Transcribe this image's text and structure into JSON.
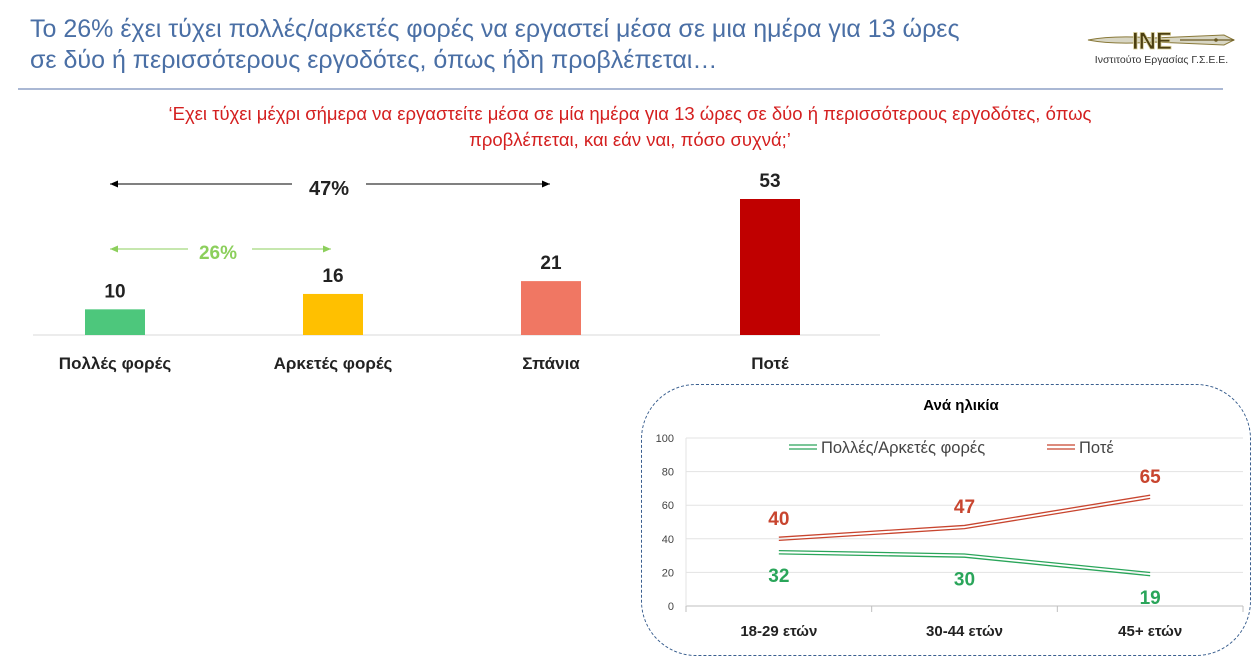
{
  "header": {
    "title_line1": "Το 26% έχει τύχει πολλές/αρκετές φορές να εργαστεί μέσα σε μια ημέρα για 13 ώρες",
    "title_line2": "σε δύο ή περισσότερους εργοδότες, όπως ήδη προβλέπεται…",
    "logo_mark": "INE",
    "logo_caption": "Ινστιτούτο Εργασίας Γ.Σ.Ε.Ε."
  },
  "question": {
    "line1": "‘Εχει τύχει μέχρι σήμερα να εργαστείτε μέσα σε μία ημέρα για 13 ώρες σε δύο ή περισσότερους εργοδότες, όπως",
    "line2": "προβλέπεται, και εάν ναι, πόσο συχνά;’"
  },
  "annotations": {
    "total_label": "47%",
    "subtotal_label": "26%"
  },
  "chart_data": [
    {
      "type": "bar",
      "categories": [
        "Πολλές φορές",
        "Αρκετές φορές",
        "Σπάνια",
        "Ποτέ"
      ],
      "values": [
        10,
        16,
        21,
        53
      ],
      "colors": [
        "#4dc77c",
        "#ffc000",
        "#f07763",
        "#c00000"
      ],
      "ylim": [
        0,
        53
      ],
      "grid": false
    },
    {
      "type": "line",
      "title": "Ανά ηλικία",
      "categories": [
        "18-29 ετών",
        "30-44 ετών",
        "45+ ετών"
      ],
      "series": [
        {
          "name": "Πολλές/Αρκετές φορές",
          "values": [
            32,
            30,
            19
          ],
          "color": "#2aa55a"
        },
        {
          "name": "Ποτέ",
          "values": [
            40,
            47,
            65
          ],
          "color": "#c8452f"
        }
      ],
      "ylim": [
        0,
        100
      ],
      "yticks": [
        "0",
        "20",
        "40",
        "60",
        "80",
        "100"
      ],
      "grid": true,
      "legend_position": "top"
    }
  ]
}
